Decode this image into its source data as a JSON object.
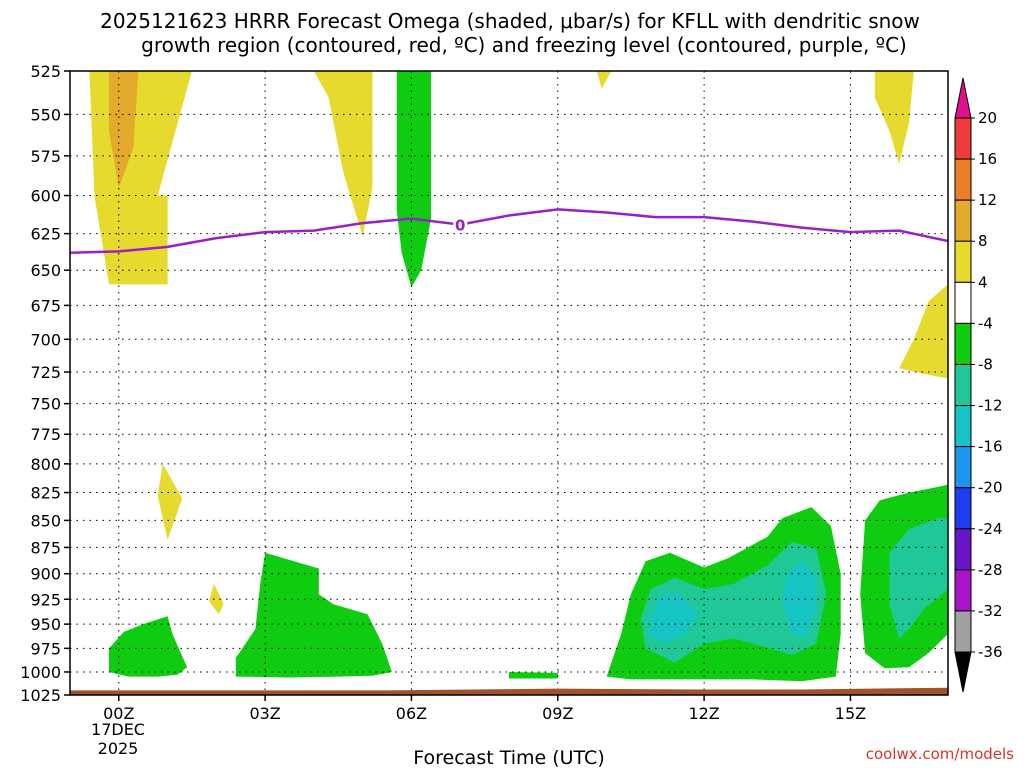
{
  "chart_data": {
    "type": "contour",
    "title_line1": "2025121623 HRRR Forecast Omega (shaded, μbar/s) for KFLL with dendritic snow",
    "title_line2": "growth region (contoured, red, ºC) and freezing level (contoured, purple, ºC)",
    "xlabel": "Forecast Time (UTC)",
    "x_range_hours": [
      -1,
      17
    ],
    "x_ticks": [
      {
        "hour": 0,
        "label": "00Z"
      },
      {
        "hour": 3,
        "label": "03Z"
      },
      {
        "hour": 6,
        "label": "06Z"
      },
      {
        "hour": 9,
        "label": "09Z"
      },
      {
        "hour": 12,
        "label": "12Z"
      },
      {
        "hour": 15,
        "label": "15Z"
      }
    ],
    "date_label": [
      "17DEC",
      "2025"
    ],
    "y_range_hpa": [
      525,
      1025
    ],
    "y_ticks": [
      525,
      550,
      575,
      600,
      625,
      650,
      675,
      700,
      725,
      750,
      775,
      800,
      825,
      850,
      875,
      900,
      925,
      950,
      975,
      1000,
      1025
    ],
    "colorbar": {
      "unit": "μbar/s",
      "labels": [
        "20",
        "16",
        "12",
        "8",
        "4",
        "-4",
        "-8",
        "-12",
        "-16",
        "-20",
        "-24",
        "-28",
        "-32",
        "-36"
      ],
      "bins": [
        {
          "from": 20,
          "to": 24,
          "color": "#e0108a"
        },
        {
          "from": 16,
          "to": 20,
          "color": "#f03c3c"
        },
        {
          "from": 12,
          "to": 16,
          "color": "#ee7f2a"
        },
        {
          "from": 8,
          "to": 12,
          "color": "#e3aa2c"
        },
        {
          "from": 4,
          "to": 8,
          "color": "#e6da2e"
        },
        {
          "from": -4,
          "to": 4,
          "color": "#ffffff"
        },
        {
          "from": -8,
          "to": -4,
          "color": "#10cc10"
        },
        {
          "from": -12,
          "to": -8,
          "color": "#20c898"
        },
        {
          "from": -16,
          "to": -12,
          "color": "#16c4c4"
        },
        {
          "from": -20,
          "to": -16,
          "color": "#1e96f0"
        },
        {
          "from": -24,
          "to": -20,
          "color": "#1e3cf0"
        },
        {
          "from": -28,
          "to": -24,
          "color": "#6a14c8"
        },
        {
          "from": -32,
          "to": -28,
          "color": "#aa14c8"
        },
        {
          "from": -36,
          "to": -32,
          "color": "#a0a0a0"
        },
        {
          "from": -40,
          "to": -36,
          "color": "#000000"
        }
      ]
    },
    "freezing_level": {
      "label": "0",
      "label_at": {
        "hour": 7.0,
        "hpa": 619
      },
      "color": "#9b1fc8",
      "points": [
        [
          -1,
          638
        ],
        [
          0,
          637
        ],
        [
          1,
          634
        ],
        [
          2,
          628
        ],
        [
          3,
          624
        ],
        [
          4,
          623
        ],
        [
          5,
          618
        ],
        [
          6,
          615
        ],
        [
          7,
          619
        ],
        [
          8,
          613
        ],
        [
          9,
          609
        ],
        [
          10,
          611
        ],
        [
          11,
          614
        ],
        [
          12,
          614
        ],
        [
          13,
          617
        ],
        [
          14,
          621
        ],
        [
          15,
          624
        ],
        [
          16,
          623
        ],
        [
          17,
          630
        ]
      ]
    },
    "omega_regions": [
      {
        "level": 4,
        "color": "#e6da2e",
        "points": [
          [
            -0.6,
            525
          ],
          [
            0,
            525
          ],
          [
            1.5,
            525
          ],
          [
            0.8,
            600
          ],
          [
            1.0,
            600
          ],
          [
            1.0,
            660
          ],
          [
            -0.2,
            660
          ],
          [
            -0.5,
            600
          ]
        ]
      },
      {
        "level": 8,
        "color": "#e3aa2c",
        "points": [
          [
            -0.2,
            525
          ],
          [
            0.4,
            525
          ],
          [
            0.3,
            570
          ],
          [
            0.0,
            595
          ],
          [
            -0.2,
            560
          ]
        ]
      },
      {
        "level": 4,
        "color": "#e6da2e",
        "points": [
          [
            4.0,
            525
          ],
          [
            5.2,
            525
          ],
          [
            5.2,
            595
          ],
          [
            5.0,
            627
          ],
          [
            4.6,
            585
          ],
          [
            4.3,
            540
          ]
        ]
      },
      {
        "level": -4,
        "color": "#10cc10",
        "points": [
          [
            5.7,
            525
          ],
          [
            6.4,
            525
          ],
          [
            6.4,
            615
          ],
          [
            6.2,
            650
          ],
          [
            6.0,
            662
          ],
          [
            5.8,
            638
          ],
          [
            5.7,
            610
          ]
        ]
      },
      {
        "level": 4,
        "color": "#e6da2e",
        "points": [
          [
            9.8,
            525
          ],
          [
            10.1,
            525
          ],
          [
            9.9,
            535
          ]
        ]
      },
      {
        "level": 4,
        "color": "#e6da2e",
        "points": [
          [
            15.5,
            525
          ],
          [
            16.3,
            525
          ],
          [
            16.2,
            555
          ],
          [
            16.0,
            580
          ],
          [
            15.8,
            560
          ],
          [
            15.5,
            540
          ]
        ]
      },
      {
        "level": 4,
        "color": "#e6da2e",
        "points": [
          [
            17.0,
            660
          ],
          [
            17.0,
            730
          ],
          [
            16.7,
            728
          ],
          [
            16.0,
            722
          ],
          [
            16.3,
            700
          ],
          [
            16.6,
            672
          ]
        ]
      },
      {
        "level": 4,
        "color": "#e6da2e",
        "points": [
          [
            0.9,
            800
          ],
          [
            1.3,
            830
          ],
          [
            1.0,
            868
          ],
          [
            0.8,
            828
          ]
        ]
      },
      {
        "level": 4,
        "color": "#e6da2e",
        "points": [
          [
            1.95,
            910
          ],
          [
            2.15,
            930
          ],
          [
            2.05,
            940
          ],
          [
            1.85,
            927
          ]
        ]
      },
      {
        "level": -4,
        "color": "#10cc10",
        "points": [
          [
            -0.2,
            1000
          ],
          [
            -0.2,
            975
          ],
          [
            0.1,
            958
          ],
          [
            0.5,
            950
          ],
          [
            1.0,
            942
          ],
          [
            1.1,
            960
          ],
          [
            1.4,
            995
          ],
          [
            1.2,
            1003
          ],
          [
            0.8,
            1005
          ],
          [
            0.2,
            1005
          ]
        ]
      },
      {
        "level": -4,
        "color": "#10cc10",
        "points": [
          [
            2.4,
            1005
          ],
          [
            2.4,
            985
          ],
          [
            2.8,
            955
          ],
          [
            2.9,
            910
          ],
          [
            3.0,
            880
          ],
          [
            4.1,
            895
          ],
          [
            4.1,
            920
          ],
          [
            4.4,
            930
          ],
          [
            5.1,
            940
          ],
          [
            5.4,
            970
          ],
          [
            5.6,
            1000
          ],
          [
            5.2,
            1004
          ],
          [
            4.5,
            1005
          ],
          [
            3.5,
            1006
          ]
        ]
      },
      {
        "level": -4,
        "color": "#10cc10",
        "points": [
          [
            8.0,
            1000
          ],
          [
            9.0,
            1001
          ],
          [
            9.0,
            1007
          ],
          [
            8.0,
            1007
          ]
        ]
      },
      {
        "level": -4,
        "color": "#10cc10",
        "points": [
          [
            10.0,
            1005
          ],
          [
            10.3,
            960
          ],
          [
            10.5,
            920
          ],
          [
            10.8,
            888
          ],
          [
            11.3,
            880
          ],
          [
            12.0,
            894
          ],
          [
            12.5,
            885
          ],
          [
            13.3,
            865
          ],
          [
            13.6,
            848
          ],
          [
            14.2,
            838
          ],
          [
            14.6,
            855
          ],
          [
            14.8,
            900
          ],
          [
            14.8,
            960
          ],
          [
            14.7,
            1005
          ],
          [
            14.0,
            1010
          ],
          [
            13.0,
            1008
          ],
          [
            11.5,
            1008
          ],
          [
            10.5,
            1008
          ]
        ]
      },
      {
        "level": -8,
        "color": "#20c898",
        "points": [
          [
            10.7,
            945
          ],
          [
            10.9,
            915
          ],
          [
            11.4,
            904
          ],
          [
            12.0,
            915
          ],
          [
            12.6,
            910
          ],
          [
            13.3,
            892
          ],
          [
            13.8,
            870
          ],
          [
            14.3,
            876
          ],
          [
            14.5,
            920
          ],
          [
            14.3,
            970
          ],
          [
            13.8,
            982
          ],
          [
            13.0,
            970
          ],
          [
            12.6,
            965
          ],
          [
            12.0,
            970
          ],
          [
            11.4,
            990
          ],
          [
            10.8,
            975
          ]
        ]
      },
      {
        "level": -12,
        "color": "#16c4c4",
        "points": [
          [
            10.9,
            945
          ],
          [
            11.1,
            920
          ],
          [
            11.5,
            920
          ],
          [
            11.9,
            940
          ],
          [
            11.6,
            960
          ],
          [
            11.2,
            970
          ],
          [
            10.9,
            962
          ]
        ]
      },
      {
        "level": -12,
        "color": "#16c4c4",
        "points": [
          [
            13.6,
            925
          ],
          [
            13.7,
            900
          ],
          [
            14.0,
            888
          ],
          [
            14.3,
            902
          ],
          [
            14.3,
            935
          ],
          [
            14.1,
            962
          ],
          [
            13.8,
            960
          ]
        ]
      },
      {
        "level": -4,
        "color": "#10cc10",
        "points": [
          [
            15.3,
            850
          ],
          [
            15.6,
            832
          ],
          [
            16.2,
            825
          ],
          [
            16.8,
            820
          ],
          [
            17.0,
            818
          ],
          [
            17.0,
            960
          ],
          [
            16.6,
            980
          ],
          [
            16.2,
            995
          ],
          [
            15.7,
            996
          ],
          [
            15.3,
            980
          ],
          [
            15.2,
            920
          ]
        ]
      },
      {
        "level": -8,
        "color": "#20c898",
        "points": [
          [
            15.8,
            880
          ],
          [
            16.2,
            858
          ],
          [
            16.8,
            848
          ],
          [
            17.0,
            848
          ],
          [
            17.0,
            915
          ],
          [
            16.5,
            935
          ],
          [
            16.2,
            955
          ],
          [
            16.0,
            965
          ],
          [
            15.8,
            930
          ]
        ]
      },
      {
        "level": -4,
        "color": "#10cc10",
        "points": [
          [
            16.6,
            940
          ],
          [
            17.0,
            925
          ],
          [
            17.0,
            960
          ],
          [
            16.7,
            955
          ]
        ]
      }
    ],
    "surface_terrain": {
      "color": "#a0522d",
      "points": [
        [
          -1,
          1020
        ],
        [
          5.5,
          1020
        ],
        [
          9,
          1018
        ],
        [
          12,
          1019
        ],
        [
          14,
          1019
        ],
        [
          17,
          1017
        ],
        [
          17,
          1025
        ],
        [
          -1,
          1025
        ]
      ]
    }
  },
  "credit": "coolwx.com/models"
}
